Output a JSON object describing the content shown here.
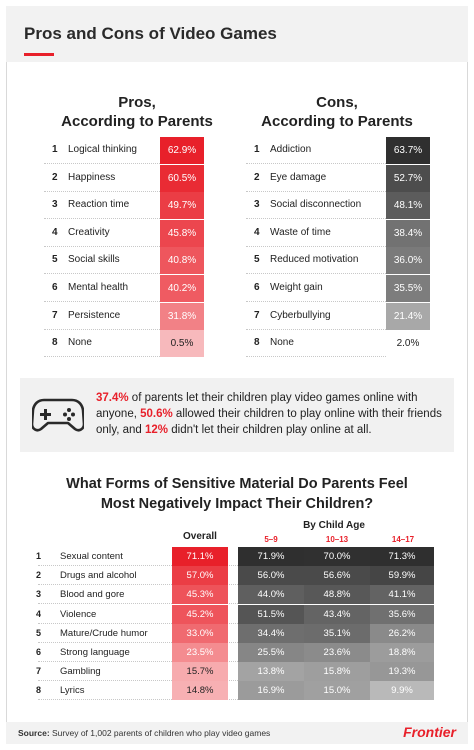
{
  "title": "Pros and Cons of Video Games",
  "pros": {
    "title_line1": "Pros,",
    "title_line2": "According to Parents",
    "items": [
      {
        "rank": "1",
        "label": "Logical thinking",
        "value": "62.9%"
      },
      {
        "rank": "2",
        "label": "Happiness",
        "value": "60.5%"
      },
      {
        "rank": "3",
        "label": "Reaction time",
        "value": "49.7%"
      },
      {
        "rank": "4",
        "label": "Creativity",
        "value": "45.8%"
      },
      {
        "rank": "5",
        "label": "Social skills",
        "value": "40.8%"
      },
      {
        "rank": "6",
        "label": "Mental health",
        "value": "40.2%"
      },
      {
        "rank": "7",
        "label": "Persistence",
        "value": "31.8%"
      },
      {
        "rank": "8",
        "label": "None",
        "value": "0.5%"
      }
    ],
    "colors": [
      "#e8202a",
      "#e92b34",
      "#eb3d45",
      "#ec464e",
      "#ee565d",
      "#ef5b62",
      "#f28186",
      "#f7b9bc"
    ]
  },
  "cons": {
    "title_line1": "Cons,",
    "title_line2": "According to Parents",
    "items": [
      {
        "rank": "1",
        "label": "Addiction",
        "value": "63.7%"
      },
      {
        "rank": "2",
        "label": "Eye damage",
        "value": "52.7%"
      },
      {
        "rank": "3",
        "label": "Social disconnection",
        "value": "48.1%"
      },
      {
        "rank": "4",
        "label": "Waste of time",
        "value": "38.4%"
      },
      {
        "rank": "5",
        "label": "Reduced motivation",
        "value": "36.0%"
      },
      {
        "rank": "6",
        "label": "Weight gain",
        "value": "35.5%"
      },
      {
        "rank": "7",
        "label": "Cyberbullying",
        "value": "21.4%"
      },
      {
        "rank": "8",
        "label": "None",
        "value": "2.0%"
      }
    ],
    "colors": [
      "#2f2f2f",
      "#4d4d4d",
      "#5c5c5c",
      "#727272",
      "#7a7a7a",
      "#7d7d7d",
      "#a8a8a8",
      "#ffffff"
    ]
  },
  "online": {
    "p1": "37.4%",
    "t1": " of parents let their children play video games online with anyone, ",
    "p2": "50.6%",
    "t2": " allowed their children to play online with their friends only, and ",
    "p3": "12%",
    "t3": " didn't let their children play online at all."
  },
  "sensitive": {
    "title_line1": "What Forms of Sensitive Material Do Parents Feel",
    "title_line2": "Most Negatively Impact Their Children?",
    "overall_header": "Overall",
    "age_header": "By Child Age",
    "age_groups": [
      "5–9",
      "10–13",
      "14–17"
    ],
    "rows": [
      {
        "rank": "1",
        "label": "Sexual content",
        "overall": "71.1%",
        "a": "71.9%",
        "b": "70.0%",
        "c": "71.3%"
      },
      {
        "rank": "2",
        "label": "Drugs and alcohol",
        "overall": "57.0%",
        "a": "56.0%",
        "b": "56.6%",
        "c": "59.9%"
      },
      {
        "rank": "3",
        "label": "Blood and gore",
        "overall": "45.3%",
        "a": "44.0%",
        "b": "48.8%",
        "c": "41.1%"
      },
      {
        "rank": "4",
        "label": "Violence",
        "overall": "45.2%",
        "a": "51.5%",
        "b": "43.4%",
        "c": "35.6%"
      },
      {
        "rank": "5",
        "label": "Mature/Crude humor",
        "overall": "33.0%",
        "a": "34.4%",
        "b": "35.1%",
        "c": "26.2%"
      },
      {
        "rank": "6",
        "label": "Strong language",
        "overall": "23.5%",
        "a": "25.5%",
        "b": "23.6%",
        "c": "18.8%"
      },
      {
        "rank": "7",
        "label": "Gambling",
        "overall": "15.7%",
        "a": "13.8%",
        "b": "15.8%",
        "c": "19.3%"
      },
      {
        "rank": "8",
        "label": "Lyrics",
        "overall": "14.8%",
        "a": "16.9%",
        "b": "15.0%",
        "c": "9.9%"
      }
    ],
    "overall_colors": [
      "#e8202a",
      "#eb3d45",
      "#ee535a",
      "#ee545b",
      "#f06a70",
      "#f48c90",
      "#f7abae",
      "#f7b0b3"
    ],
    "age_colors": [
      [
        "#2f2f2f",
        "#303030",
        "#2f2f2f"
      ],
      [
        "#4a4a4a",
        "#4a4a4a",
        "#454545"
      ],
      [
        "#5f5f5f",
        "#585858",
        "#636363"
      ],
      [
        "#555555",
        "#646464",
        "#707070"
      ],
      [
        "#6e6e6e",
        "#6c6c6c",
        "#8a8a8a"
      ],
      [
        "#868686",
        "#8b8b8b",
        "#9c9c9c"
      ],
      [
        "#a3a3a3",
        "#9e9e9e",
        "#979797"
      ],
      [
        "#9b9b9b",
        "#a0a0a0",
        "#b9b9b9"
      ]
    ]
  },
  "footer": {
    "source_label": "Source:",
    "source_text": " Survey of 1,002 parents of children who play video games",
    "brand": "Frontier"
  }
}
